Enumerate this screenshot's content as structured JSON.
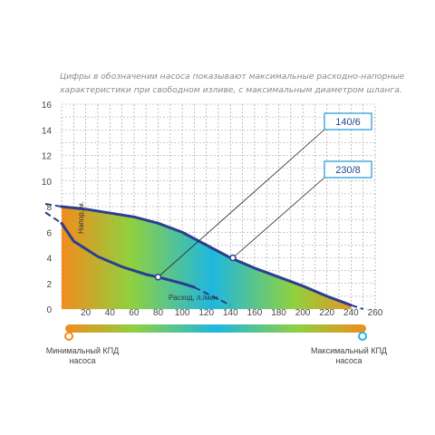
{
  "caption": "Цифры в обозначении насоса показывают максимальные расходно-напорные характеристики при свободном изливе, с максимальным диаметром шланга.",
  "chart_data": {
    "type": "line",
    "title": "",
    "xlabel": "Расход, л./мин.",
    "ylabel": "Напор, м.",
    "xlim": [
      0,
      260
    ],
    "ylim": [
      0,
      16
    ],
    "x_ticks": [
      20,
      40,
      60,
      80,
      100,
      120,
      140,
      160,
      180,
      200,
      220,
      240,
      260
    ],
    "y_ticks": [
      0,
      2,
      4,
      6,
      8,
      10,
      12,
      14,
      16
    ],
    "grid": true,
    "series": [
      {
        "name": "140/6",
        "x": [
          0,
          10,
          30,
          50,
          70,
          80,
          100,
          110
        ],
        "y": [
          6.7,
          5.3,
          4.1,
          3.3,
          2.7,
          2.5,
          2.0,
          1.7
        ]
      },
      {
        "name": "230/8",
        "x": [
          0,
          20,
          40,
          60,
          80,
          100,
          120,
          140,
          160,
          180,
          200,
          220,
          240
        ],
        "y": [
          8.0,
          7.8,
          7.5,
          7.2,
          6.7,
          6.0,
          5.0,
          4.0,
          3.2,
          2.5,
          1.8,
          1.0,
          0.3
        ]
      }
    ],
    "markers": [
      {
        "series": "140/6",
        "x": 80,
        "y": 2.5
      },
      {
        "series": "230/8",
        "x": 142,
        "y": 4.0
      }
    ],
    "efficiency_scale": {
      "min_label": "Минимальный КПД насоса",
      "max_label": "Максимальный КПД насоса",
      "colors": [
        "#f28c1e",
        "#8fd13f",
        "#1fb7e0",
        "#8fd13f",
        "#f28c1e"
      ]
    }
  }
}
